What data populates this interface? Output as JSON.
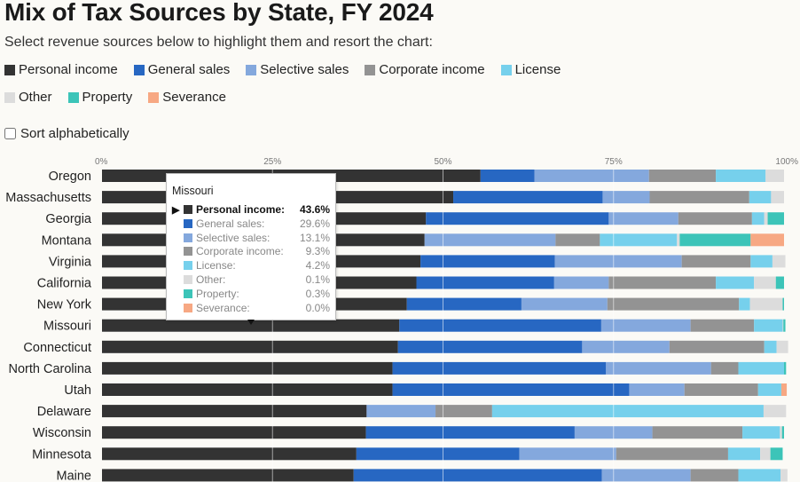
{
  "header": {
    "title": "Mix of Tax Sources by State, FY 2024",
    "subtitle": "Select revenue sources below to highlight them and resort the chart:"
  },
  "legend": [
    {
      "key": "personal",
      "label": "Personal income",
      "color": "#333333"
    },
    {
      "key": "general",
      "label": "General sales",
      "color": "#2767c2"
    },
    {
      "key": "selective",
      "label": "Selective sales",
      "color": "#84a8dd"
    },
    {
      "key": "corporate",
      "label": "Corporate income",
      "color": "#939393"
    },
    {
      "key": "license",
      "label": "License",
      "color": "#76d0ec"
    },
    {
      "key": "other",
      "label": "Other",
      "color": "#dcdcdc"
    },
    {
      "key": "property",
      "label": "Property",
      "color": "#3cc4b8"
    },
    {
      "key": "severance",
      "label": "Severance",
      "color": "#f7a883"
    }
  ],
  "sort_label": "Sort alphabetically",
  "chart_data": {
    "type": "bar",
    "orientation": "horizontal",
    "stacked": true,
    "title": "Mix of Tax Sources by State, FY 2024",
    "xlim": [
      0,
      100
    ],
    "x_ticks": [
      "0%",
      "25%",
      "50%",
      "75%",
      "100%"
    ],
    "categories": [
      "Oregon",
      "Massachusetts",
      "Georgia",
      "Montana",
      "Virginia",
      "California",
      "New York",
      "Missouri",
      "Connecticut",
      "North Carolina",
      "Utah",
      "Delaware",
      "Wisconsin",
      "Minnesota",
      "Maine"
    ],
    "series": [
      {
        "name": "Personal income",
        "values": [
          55.5,
          51.5,
          47.5,
          47.3,
          46.7,
          46.1,
          44.7,
          43.6,
          43.4,
          42.6,
          42.6,
          38.8,
          38.7,
          37.3,
          36.9
        ]
      },
      {
        "name": "General sales",
        "values": [
          7.9,
          21.9,
          26.8,
          0.0,
          19.7,
          20.2,
          16.8,
          29.6,
          27.0,
          31.3,
          34.7,
          0.0,
          30.6,
          23.9,
          36.4
        ]
      },
      {
        "name": "Selective sales",
        "values": [
          16.8,
          6.9,
          10.2,
          19.2,
          18.6,
          8.0,
          12.6,
          13.1,
          12.8,
          15.4,
          8.1,
          10.1,
          11.4,
          14.2,
          13.0
        ]
      },
      {
        "name": "Corporate income",
        "values": [
          9.8,
          14.6,
          10.8,
          6.5,
          10.1,
          15.7,
          19.3,
          9.3,
          13.9,
          4.0,
          10.8,
          8.3,
          13.2,
          16.4,
          7.0
        ]
      },
      {
        "name": "License",
        "values": [
          7.3,
          3.2,
          1.8,
          11.3,
          3.2,
          5.6,
          1.6,
          4.2,
          1.8,
          6.7,
          3.4,
          39.8,
          5.5,
          4.7,
          6.2
        ]
      },
      {
        "name": "Other",
        "values": [
          2.7,
          1.9,
          0.5,
          0.4,
          1.9,
          3.2,
          4.8,
          0.1,
          1.7,
          0.0,
          0.0,
          3.3,
          0.3,
          1.5,
          1.0
        ]
      },
      {
        "name": "Property",
        "values": [
          0.0,
          0.0,
          2.4,
          10.4,
          0.0,
          1.2,
          0.2,
          0.3,
          0.0,
          0.3,
          0.0,
          0.0,
          0.3,
          1.8,
          0.0
        ]
      },
      {
        "name": "Severance",
        "values": [
          0.0,
          0.0,
          0.0,
          4.9,
          0.0,
          0.0,
          0.0,
          0.0,
          0.0,
          0.0,
          0.8,
          0.0,
          0.0,
          0.0,
          0.0
        ]
      }
    ]
  },
  "tooltip": {
    "title": "Missouri",
    "active_index": 0,
    "rows": [
      {
        "label": "Personal income:",
        "value": "43.6%"
      },
      {
        "label": "General sales:",
        "value": "29.6%"
      },
      {
        "label": "Selective sales:",
        "value": "13.1%"
      },
      {
        "label": "Corporate income:",
        "value": "9.3%"
      },
      {
        "label": "License:",
        "value": "4.2%"
      },
      {
        "label": "Other:",
        "value": "0.1%"
      },
      {
        "label": "Property:",
        "value": "0.3%"
      },
      {
        "label": "Severance:",
        "value": "0.0%"
      }
    ]
  }
}
